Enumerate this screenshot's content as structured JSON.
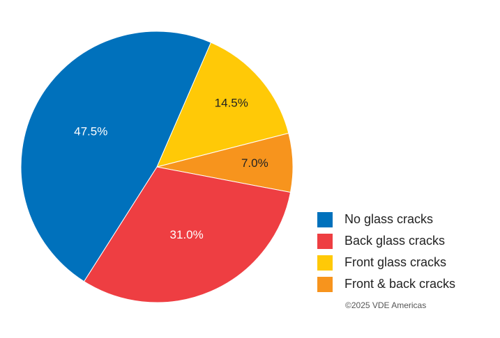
{
  "chart_data": {
    "type": "pie",
    "categories": [
      "No glass cracks",
      "Back glass cracks",
      "Front glass cracks",
      "Front & back cracks"
    ],
    "values": [
      47.5,
      31.0,
      14.5,
      7.0
    ],
    "value_labels": [
      "47.5%",
      "31.0%",
      "14.5%",
      "7.0%"
    ],
    "colors": [
      "#0071bc",
      "#ee3e42",
      "#ffc907",
      "#f7941d"
    ],
    "credit": "©2025 VDE Americas"
  }
}
